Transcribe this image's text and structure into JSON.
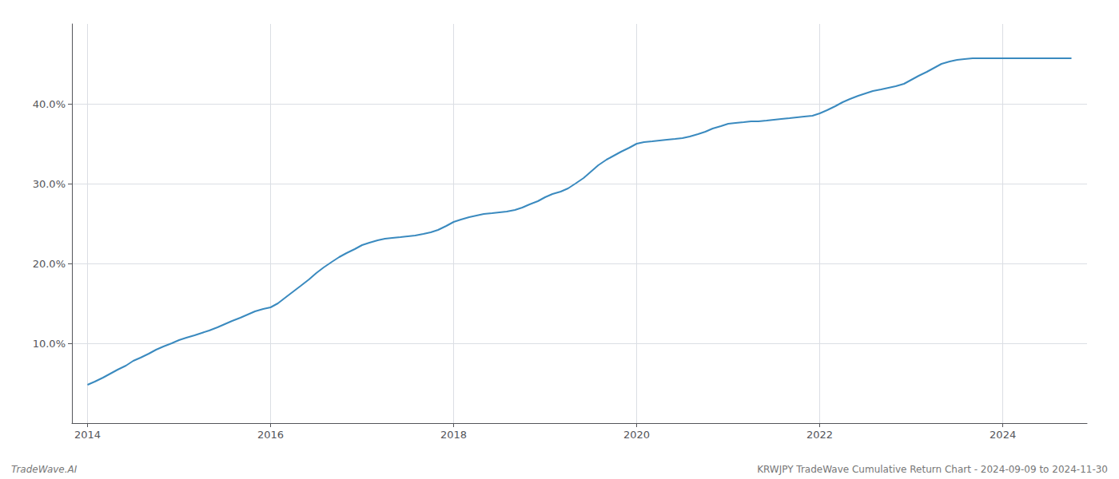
{
  "chart_data": {
    "type": "line",
    "x": [
      2014.0,
      2014.08,
      2014.17,
      2014.25,
      2014.33,
      2014.42,
      2014.5,
      2014.58,
      2014.67,
      2014.75,
      2014.83,
      2014.92,
      2015.0,
      2015.08,
      2015.17,
      2015.25,
      2015.33,
      2015.42,
      2015.5,
      2015.58,
      2015.67,
      2015.75,
      2015.83,
      2015.92,
      2016.0,
      2016.08,
      2016.17,
      2016.25,
      2016.33,
      2016.42,
      2016.5,
      2016.58,
      2016.67,
      2016.75,
      2016.83,
      2016.92,
      2017.0,
      2017.08,
      2017.17,
      2017.25,
      2017.33,
      2017.42,
      2017.5,
      2017.58,
      2017.67,
      2017.75,
      2017.83,
      2017.92,
      2018.0,
      2018.08,
      2018.17,
      2018.25,
      2018.33,
      2018.42,
      2018.5,
      2018.58,
      2018.67,
      2018.75,
      2018.83,
      2018.92,
      2019.0,
      2019.08,
      2019.17,
      2019.25,
      2019.33,
      2019.42,
      2019.5,
      2019.58,
      2019.67,
      2019.75,
      2019.83,
      2019.92,
      2020.0,
      2020.08,
      2020.17,
      2020.25,
      2020.33,
      2020.42,
      2020.5,
      2020.58,
      2020.67,
      2020.75,
      2020.83,
      2020.92,
      2021.0,
      2021.08,
      2021.17,
      2021.25,
      2021.33,
      2021.42,
      2021.5,
      2021.58,
      2021.67,
      2021.75,
      2021.83,
      2021.92,
      2022.0,
      2022.08,
      2022.17,
      2022.25,
      2022.33,
      2022.42,
      2022.5,
      2022.58,
      2022.67,
      2022.75,
      2022.83,
      2022.92,
      2023.0,
      2023.08,
      2023.17,
      2023.25,
      2023.33,
      2023.42,
      2023.5,
      2023.58,
      2023.67,
      2023.75,
      2023.83,
      2023.92,
      2024.0,
      2024.08,
      2024.17,
      2024.25,
      2024.33,
      2024.42,
      2024.5,
      2024.58,
      2024.67,
      2024.75
    ],
    "values": [
      4.8,
      5.2,
      5.7,
      6.2,
      6.7,
      7.2,
      7.8,
      8.2,
      8.7,
      9.2,
      9.6,
      10.0,
      10.4,
      10.7,
      11.0,
      11.3,
      11.6,
      12.0,
      12.4,
      12.8,
      13.2,
      13.6,
      14.0,
      14.3,
      14.5,
      15.0,
      15.8,
      16.5,
      17.2,
      18.0,
      18.8,
      19.5,
      20.2,
      20.8,
      21.3,
      21.8,
      22.3,
      22.6,
      22.9,
      23.1,
      23.2,
      23.3,
      23.4,
      23.5,
      23.7,
      23.9,
      24.2,
      24.7,
      25.2,
      25.5,
      25.8,
      26.0,
      26.2,
      26.3,
      26.4,
      26.5,
      26.7,
      27.0,
      27.4,
      27.8,
      28.3,
      28.7,
      29.0,
      29.4,
      30.0,
      30.7,
      31.5,
      32.3,
      33.0,
      33.5,
      34.0,
      34.5,
      35.0,
      35.2,
      35.3,
      35.4,
      35.5,
      35.6,
      35.7,
      35.9,
      36.2,
      36.5,
      36.9,
      37.2,
      37.5,
      37.6,
      37.7,
      37.8,
      37.8,
      37.9,
      38.0,
      38.1,
      38.2,
      38.3,
      38.4,
      38.5,
      38.8,
      39.2,
      39.7,
      40.2,
      40.6,
      41.0,
      41.3,
      41.6,
      41.8,
      42.0,
      42.2,
      42.5,
      43.0,
      43.5,
      44.0,
      44.5,
      45.0,
      45.3,
      45.5,
      45.6,
      45.7,
      45.7,
      45.7,
      45.7,
      45.7,
      45.7,
      45.7,
      45.7,
      45.7,
      45.7,
      45.7,
      45.7,
      45.7,
      45.7
    ],
    "color": "#3a8abf",
    "xlim": [
      2013.83,
      2024.92
    ],
    "ylim": [
      0,
      50
    ],
    "xticks": [
      2014,
      2016,
      2018,
      2020,
      2022,
      2024
    ],
    "yticks": [
      {
        "value": 10.0,
        "label": "10.0%"
      },
      {
        "value": 20.0,
        "label": "20.0%"
      },
      {
        "value": 30.0,
        "label": "30.0%"
      },
      {
        "value": 40.0,
        "label": "40.0%"
      }
    ],
    "grid": true,
    "annotations": [
      "TradeWave.AI",
      "KRWJPY TradeWave Cumulative Return Chart - 2024-09-09 to 2024-11-30"
    ]
  }
}
